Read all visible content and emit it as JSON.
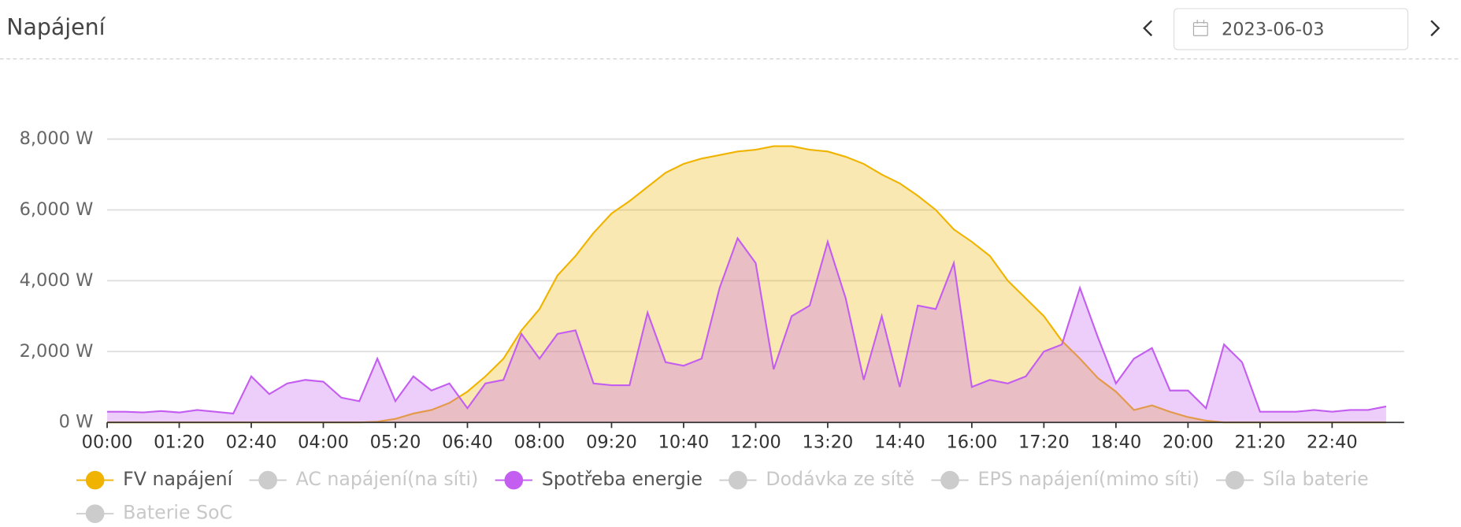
{
  "header": {
    "title": "Napájení",
    "date": "2023-06-03"
  },
  "chart_data": {
    "type": "area",
    "x": [
      0,
      20,
      40,
      60,
      80,
      100,
      120,
      140,
      160,
      180,
      200,
      220,
      240,
      260,
      280,
      300,
      320,
      340,
      360,
      380,
      400,
      420,
      440,
      460,
      480,
      500,
      520,
      540,
      560,
      580,
      600,
      620,
      640,
      660,
      680,
      700,
      720,
      740,
      760,
      780,
      800,
      820,
      840,
      860,
      880,
      900,
      920,
      940,
      960,
      980,
      1000,
      1020,
      1040,
      1060,
      1080,
      1100,
      1120,
      1140,
      1160,
      1180,
      1200,
      1220,
      1240,
      1260,
      1280,
      1300,
      1320,
      1340,
      1360,
      1380,
      1400,
      1420
    ],
    "xlim": [
      0,
      1440
    ],
    "xticks": [
      {
        "value": 0,
        "label": "00:00"
      },
      {
        "value": 80,
        "label": "01:20"
      },
      {
        "value": 160,
        "label": "02:40"
      },
      {
        "value": 240,
        "label": "04:00"
      },
      {
        "value": 320,
        "label": "05:20"
      },
      {
        "value": 400,
        "label": "06:40"
      },
      {
        "value": 480,
        "label": "08:00"
      },
      {
        "value": 560,
        "label": "09:20"
      },
      {
        "value": 640,
        "label": "10:40"
      },
      {
        "value": 720,
        "label": "12:00"
      },
      {
        "value": 800,
        "label": "13:20"
      },
      {
        "value": 880,
        "label": "14:40"
      },
      {
        "value": 960,
        "label": "16:00"
      },
      {
        "value": 1040,
        "label": "17:20"
      },
      {
        "value": 1120,
        "label": "18:40"
      },
      {
        "value": 1200,
        "label": "20:00"
      },
      {
        "value": 1280,
        "label": "21:20"
      },
      {
        "value": 1360,
        "label": "22:40"
      }
    ],
    "ylim": [
      0,
      8000
    ],
    "yticks": [
      {
        "value": 0,
        "label": "0 W"
      },
      {
        "value": 2000,
        "label": "2,000 W"
      },
      {
        "value": 4000,
        "label": "4,000 W"
      },
      {
        "value": 6000,
        "label": "6,000 W"
      },
      {
        "value": 8000,
        "label": "8,000 W"
      }
    ],
    "grid": true,
    "series": [
      {
        "name": "FV napájení",
        "color": "#f0b400",
        "visible": true,
        "values": [
          0,
          0,
          0,
          0,
          0,
          0,
          0,
          0,
          0,
          0,
          0,
          0,
          0,
          0,
          0,
          20,
          100,
          250,
          350,
          550,
          870,
          1300,
          1800,
          2600,
          3200,
          4150,
          4700,
          5350,
          5900,
          6250,
          6650,
          7050,
          7300,
          7450,
          7550,
          7650,
          7700,
          7800,
          7800,
          7700,
          7650,
          7500,
          7300,
          7000,
          6750,
          6400,
          6000,
          5450,
          5100,
          4700,
          4000,
          3500,
          3000,
          2300,
          1800,
          1250,
          870,
          350,
          480,
          300,
          150,
          50,
          0,
          0,
          0,
          0,
          0,
          0,
          0,
          0,
          0,
          0
        ]
      },
      {
        "name": "AC napájení(na síti)",
        "visible": false
      },
      {
        "name": "Spotřeba energie",
        "color": "#c35ef0",
        "visible": true,
        "values": [
          300,
          300,
          280,
          320,
          280,
          350,
          300,
          250,
          1300,
          800,
          1100,
          1200,
          1150,
          700,
          600,
          1800,
          600,
          1300,
          900,
          1100,
          400,
          1100,
          1200,
          2500,
          1800,
          2500,
          2600,
          1100,
          1050,
          1050,
          3100,
          1700,
          1600,
          1800,
          3800,
          5200,
          4500,
          1500,
          3000,
          3300,
          5100,
          3500,
          1200,
          3000,
          1000,
          3300,
          3200,
          4500,
          1000,
          1200,
          1100,
          1300,
          2000,
          2200,
          3800,
          2400,
          1100,
          1800,
          2100,
          900,
          900,
          400,
          2200,
          1700,
          300,
          300,
          300,
          350,
          300,
          350,
          350,
          450
        ]
      },
      {
        "name": "Dodávka ze sítě",
        "visible": false
      },
      {
        "name": "EPS napájení(mimo síti)",
        "visible": false
      },
      {
        "name": "Síla baterie",
        "visible": false
      },
      {
        "name": "Baterie SoC",
        "visible": false
      }
    ]
  }
}
